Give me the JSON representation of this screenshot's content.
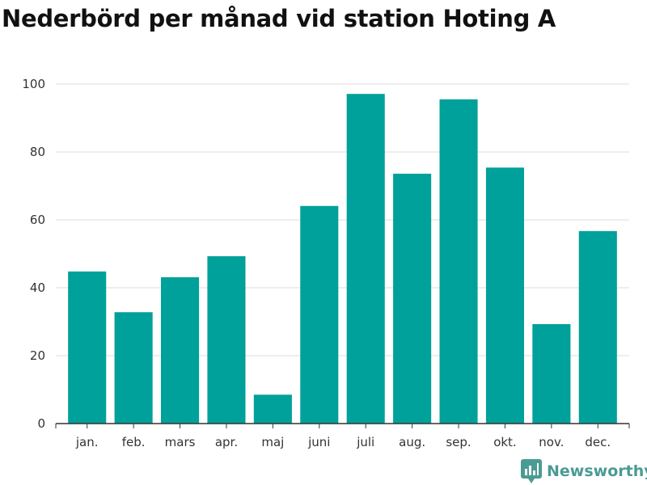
{
  "title": "Nederbörd per månad vid station Hoting A",
  "brand": {
    "name": "Newsworthy",
    "icon": "newsworthy-logo-icon",
    "color": "#4a9b93"
  },
  "colors": {
    "bar": "#00a19a",
    "grid": "#dddddd",
    "axis": "#333333"
  },
  "chart_data": {
    "type": "bar",
    "title": "Nederbörd per månad vid station Hoting A",
    "xlabel": "",
    "ylabel": "",
    "categories": [
      "jan.",
      "feb.",
      "mars",
      "apr.",
      "maj",
      "juni",
      "juli",
      "aug.",
      "sep.",
      "okt.",
      "nov.",
      "dec."
    ],
    "values": [
      44.8,
      32.8,
      43.1,
      49.3,
      8.5,
      64.1,
      97.1,
      73.6,
      95.5,
      75.4,
      29.3,
      56.7
    ],
    "ylim": [
      0,
      100
    ],
    "yticks": [
      0,
      20,
      40,
      60,
      80,
      100
    ],
    "grid": true,
    "legend": "none"
  }
}
